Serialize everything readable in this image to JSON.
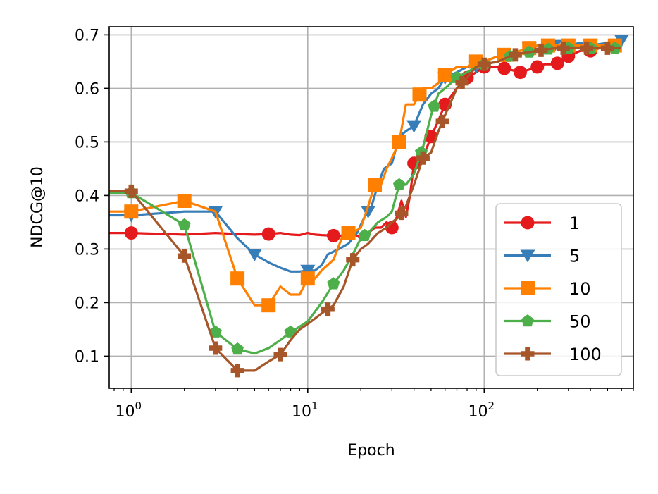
{
  "chart_data": {
    "type": "line",
    "title": "",
    "xlabel": "Epoch",
    "ylabel": "NDCG@10",
    "xscale": "log",
    "xlim": [
      0.75,
      700
    ],
    "ylim": [
      0.04,
      0.715
    ],
    "x_ticks": [
      {
        "value": 1,
        "label": "10",
        "exp": "0"
      },
      {
        "value": 10,
        "label": "10",
        "exp": "1"
      },
      {
        "value": 100,
        "label": "10",
        "exp": "2"
      }
    ],
    "y_ticks": [
      {
        "value": 0.1,
        "label": "0.1"
      },
      {
        "value": 0.2,
        "label": "0.2"
      },
      {
        "value": 0.3,
        "label": "0.3"
      },
      {
        "value": 0.4,
        "label": "0.4"
      },
      {
        "value": 0.5,
        "label": "0.5"
      },
      {
        "value": 0.6,
        "label": "0.6"
      },
      {
        "value": 0.7,
        "label": "0.7"
      }
    ],
    "grid": true,
    "legend_position": "bottom-right",
    "series": [
      {
        "name": "1",
        "color": "#e41a1c",
        "marker": "circle",
        "x": [
          0.75,
          1,
          2,
          3,
          4,
          5,
          6,
          7,
          8,
          9,
          10,
          11,
          12,
          14,
          16,
          18,
          20,
          22,
          24,
          26,
          28,
          30,
          32,
          34,
          36,
          38,
          40,
          45,
          50,
          55,
          60,
          70,
          80,
          90,
          100,
          120,
          140,
          160,
          180,
          200,
          220,
          250,
          280,
          300,
          350,
          400,
          450,
          500,
          550
        ],
        "y": [
          0.33,
          0.33,
          0.327,
          0.33,
          0.328,
          0.327,
          0.328,
          0.33,
          0.327,
          0.326,
          0.33,
          0.327,
          0.326,
          0.325,
          0.325,
          0.33,
          0.32,
          0.33,
          0.34,
          0.34,
          0.35,
          0.34,
          0.36,
          0.39,
          0.36,
          0.4,
          0.46,
          0.47,
          0.51,
          0.54,
          0.57,
          0.6,
          0.62,
          0.63,
          0.64,
          0.64,
          0.635,
          0.63,
          0.635,
          0.64,
          0.645,
          0.645,
          0.65,
          0.66,
          0.67,
          0.67,
          0.675,
          0.68,
          0.68
        ],
        "marker_x": [
          1,
          6,
          14,
          30,
          40,
          50,
          60,
          80,
          100,
          130,
          160,
          200,
          260,
          300,
          400,
          550
        ]
      },
      {
        "name": "5",
        "color": "#377eb8",
        "marker": "triangle-down",
        "x": [
          0.75,
          1,
          2,
          3,
          4,
          5,
          6,
          7,
          8,
          9,
          10,
          11,
          12,
          13,
          15,
          17,
          19,
          21,
          23,
          25,
          27,
          30,
          33,
          36,
          40,
          45,
          50,
          55,
          60,
          70,
          80,
          90,
          100,
          120,
          140,
          160,
          180,
          200,
          250,
          300,
          350,
          400,
          500,
          600
        ],
        "y": [
          0.363,
          0.363,
          0.37,
          0.37,
          0.32,
          0.29,
          0.275,
          0.265,
          0.258,
          0.258,
          0.26,
          0.26,
          0.27,
          0.29,
          0.3,
          0.31,
          0.33,
          0.36,
          0.38,
          0.42,
          0.45,
          0.46,
          0.51,
          0.52,
          0.53,
          0.57,
          0.59,
          0.6,
          0.62,
          0.63,
          0.64,
          0.64,
          0.65,
          0.66,
          0.665,
          0.67,
          0.675,
          0.68,
          0.68,
          0.68,
          0.685,
          0.68,
          0.685,
          0.69
        ],
        "marker_x": [
          1,
          3,
          5,
          10,
          22,
          40,
          60,
          90,
          130,
          180,
          250,
          300,
          400,
          600
        ]
      },
      {
        "name": "10",
        "color": "#ff7f00",
        "marker": "square",
        "x": [
          0.75,
          1,
          2,
          3,
          4,
          5,
          6,
          7,
          8,
          9,
          10,
          11,
          12,
          14,
          16,
          18,
          20,
          22,
          24,
          26,
          28,
          30,
          33,
          36,
          40,
          45,
          50,
          55,
          60,
          70,
          80,
          90,
          100,
          120,
          140,
          160,
          200,
          250,
          300,
          400,
          500,
          600
        ],
        "y": [
          0.37,
          0.37,
          0.39,
          0.37,
          0.245,
          0.195,
          0.195,
          0.23,
          0.215,
          0.215,
          0.245,
          0.245,
          0.26,
          0.28,
          0.33,
          0.33,
          0.34,
          0.38,
          0.42,
          0.42,
          0.45,
          0.47,
          0.5,
          0.57,
          0.57,
          0.6,
          0.6,
          0.61,
          0.625,
          0.64,
          0.64,
          0.65,
          0.65,
          0.66,
          0.665,
          0.67,
          0.68,
          0.68,
          0.68,
          0.68,
          0.68,
          0.68
        ],
        "marker_x": [
          1,
          2,
          4,
          6,
          10,
          17,
          24,
          33,
          43,
          60,
          90,
          130,
          180,
          230,
          300,
          400,
          550
        ]
      },
      {
        "name": "50",
        "color": "#4daf4a",
        "marker": "pentagon",
        "x": [
          0.75,
          1,
          2,
          3,
          4,
          5,
          6,
          7,
          8,
          9,
          10,
          12,
          14,
          16,
          18,
          20,
          22,
          25,
          28,
          30,
          33,
          36,
          40,
          45,
          50,
          55,
          60,
          70,
          80,
          90,
          100,
          120,
          140,
          160,
          200,
          250,
          300,
          400,
          500,
          600
        ],
        "y": [
          0.405,
          0.405,
          0.345,
          0.145,
          0.113,
          0.105,
          0.115,
          0.13,
          0.145,
          0.155,
          0.165,
          0.2,
          0.235,
          0.26,
          0.29,
          0.32,
          0.33,
          0.35,
          0.36,
          0.37,
          0.42,
          0.42,
          0.44,
          0.49,
          0.55,
          0.59,
          0.6,
          0.62,
          0.63,
          0.64,
          0.645,
          0.65,
          0.66,
          0.665,
          0.67,
          0.675,
          0.675,
          0.675,
          0.675,
          0.675
        ],
        "marker_x": [
          1,
          2,
          3,
          4,
          8,
          14,
          21,
          33,
          44,
          52,
          70,
          100,
          140,
          180,
          230,
          300,
          400,
          550
        ]
      },
      {
        "name": "100",
        "color": "#a65628",
        "marker": "plus",
        "x": [
          0.75,
          1,
          2,
          3,
          4,
          5,
          6,
          7,
          8,
          9,
          10,
          12,
          14,
          16,
          18,
          20,
          22,
          25,
          28,
          30,
          33,
          36,
          40,
          45,
          50,
          55,
          60,
          70,
          80,
          90,
          100,
          120,
          140,
          160,
          200,
          250,
          300,
          400,
          500,
          600
        ],
        "y": [
          0.408,
          0.408,
          0.287,
          0.115,
          0.073,
          0.073,
          0.09,
          0.103,
          0.13,
          0.15,
          0.16,
          0.18,
          0.195,
          0.23,
          0.28,
          0.3,
          0.31,
          0.33,
          0.34,
          0.35,
          0.36,
          0.38,
          0.42,
          0.47,
          0.48,
          0.52,
          0.55,
          0.6,
          0.62,
          0.64,
          0.645,
          0.65,
          0.66,
          0.665,
          0.67,
          0.675,
          0.675,
          0.675,
          0.675,
          0.675
        ],
        "marker_x": [
          1,
          2,
          3,
          4,
          7,
          13,
          18,
          34,
          45,
          58,
          75,
          100,
          150,
          210,
          280,
          380,
          500
        ]
      }
    ]
  }
}
